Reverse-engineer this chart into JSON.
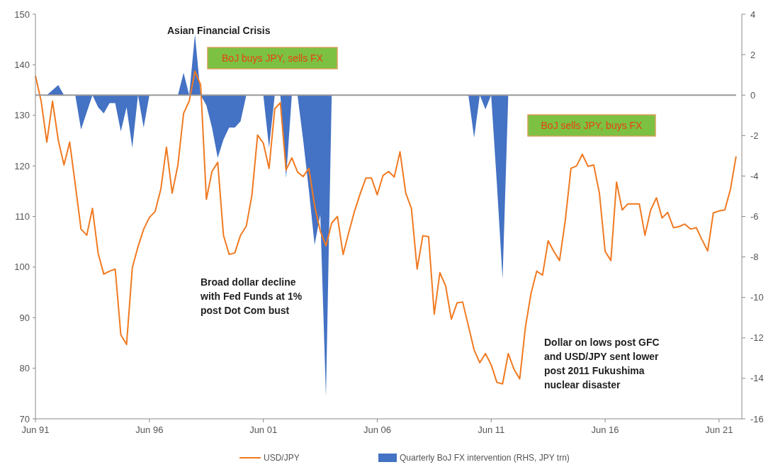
{
  "chart_data": {
    "type": "line",
    "series": [
      {
        "name": "USD/JPY",
        "color": "#f07a22",
        "x": [
          "1991-06",
          "1991-09",
          "1991-12",
          "1992-03",
          "1992-06",
          "1992-09",
          "1992-12",
          "1993-03",
          "1993-06",
          "1993-09",
          "1993-12",
          "1994-03",
          "1994-06",
          "1994-09",
          "1994-12",
          "1995-03",
          "1995-06",
          "1995-09",
          "1995-12",
          "1996-03",
          "1996-06",
          "1996-09",
          "1996-12",
          "1997-03",
          "1997-06",
          "1997-09",
          "1997-12",
          "1998-03",
          "1998-06",
          "1998-09",
          "1998-12",
          "1999-03",
          "1999-06",
          "1999-09",
          "1999-12",
          "2000-03",
          "2000-06",
          "2000-09",
          "2000-12",
          "2001-03",
          "2001-06",
          "2001-09",
          "2001-12",
          "2002-03",
          "2002-06",
          "2002-09",
          "2002-12",
          "2003-03",
          "2003-06",
          "2003-09",
          "2003-12",
          "2004-03",
          "2004-06",
          "2004-09",
          "2004-12",
          "2005-03",
          "2005-06",
          "2005-09",
          "2005-12",
          "2006-03",
          "2006-06",
          "2006-09",
          "2006-12",
          "2007-03",
          "2007-06",
          "2007-09",
          "2007-12",
          "2008-03",
          "2008-06",
          "2008-09",
          "2008-12",
          "2009-03",
          "2009-06",
          "2009-09",
          "2009-12",
          "2010-03",
          "2010-06",
          "2010-09",
          "2010-12",
          "2011-03",
          "2011-06",
          "2011-09",
          "2011-12",
          "2012-03",
          "2012-06",
          "2012-09",
          "2012-12",
          "2013-03",
          "2013-06",
          "2013-09",
          "2013-12",
          "2014-03",
          "2014-06",
          "2014-09",
          "2014-12",
          "2015-03",
          "2015-06",
          "2015-09",
          "2015-12",
          "2016-03",
          "2016-06",
          "2016-09",
          "2016-12",
          "2017-03",
          "2017-06",
          "2017-09",
          "2017-12",
          "2018-03",
          "2018-06",
          "2018-09",
          "2018-12",
          "2019-03",
          "2019-06",
          "2019-09",
          "2019-12",
          "2020-03",
          "2020-06",
          "2020-09",
          "2020-12",
          "2021-03",
          "2021-06",
          "2021-09",
          "2021-12",
          "2022-03"
        ],
        "values": [
          137.8,
          132.8,
          124.7,
          132.8,
          125.1,
          120.2,
          124.7,
          116.3,
          107.5,
          106.3,
          111.6,
          102.8,
          98.6,
          99.2,
          99.6,
          86.6,
          84.7,
          99.9,
          104.0,
          107.5,
          109.8,
          111.0,
          115.4,
          123.7,
          114.6,
          120.2,
          130.4,
          132.8,
          138.7,
          136.0,
          113.4,
          118.9,
          120.7,
          106.3,
          102.5,
          102.8,
          106.3,
          108.1,
          114.3,
          126.1,
          124.5,
          119.5,
          131.3,
          132.5,
          119.2,
          121.6,
          118.8,
          117.9,
          119.5,
          112.2,
          107.1,
          104.2,
          108.7,
          110.0,
          102.5,
          106.8,
          111.0,
          114.5,
          117.6,
          117.6,
          114.3,
          118.1,
          118.9,
          117.8,
          122.8,
          114.6,
          111.6,
          99.6,
          106.2,
          106.0,
          90.7,
          98.9,
          96.3,
          89.7,
          92.9,
          93.1,
          88.4,
          83.6,
          81.1,
          82.9,
          80.7,
          77.2,
          76.9,
          82.9,
          79.8,
          77.9,
          88.1,
          94.8,
          99.2,
          98.4,
          105.2,
          103.1,
          101.3,
          109.2,
          119.5,
          120.0,
          122.3,
          119.9,
          120.2,
          114.6,
          103.1,
          101.3,
          116.8,
          111.3,
          112.5,
          112.5,
          112.5,
          106.3,
          111.3,
          113.7,
          109.7,
          110.8,
          107.8,
          108.0,
          108.5,
          107.5,
          107.8,
          105.4,
          103.2,
          110.7,
          111.1,
          111.3,
          115.4,
          121.9
        ]
      },
      {
        "name": "Quarterly BoJ FX intervention (RHS, JPY trn)",
        "color": "#4472c4",
        "type": "area",
        "axis": "y2",
        "x": [
          "1991-06",
          "1991-12",
          "1992-06",
          "1992-09",
          "1993-03",
          "1993-06",
          "1993-12",
          "1994-03",
          "1994-06",
          "1994-09",
          "1994-12",
          "1995-03",
          "1995-06",
          "1995-09",
          "1995-12",
          "1996-03",
          "1996-06",
          "1997-09",
          "1997-12",
          "1998-03",
          "1998-06",
          "1998-09",
          "1998-12",
          "1999-03",
          "1999-06",
          "1999-09",
          "1999-12",
          "2000-03",
          "2000-06",
          "2000-09",
          "2001-06",
          "2001-09",
          "2001-12",
          "2002-03",
          "2002-06",
          "2002-09",
          "2002-12",
          "2003-03",
          "2003-06",
          "2003-09",
          "2003-12",
          "2004-03",
          "2004-06",
          "2010-06",
          "2010-09",
          "2010-12",
          "2011-03",
          "2011-06",
          "2011-09",
          "2011-12",
          "2012-03",
          "2022-03"
        ],
        "values": [
          0,
          0,
          0.5,
          0,
          0,
          -1.7,
          0,
          -0.6,
          -0.9,
          -0.4,
          -0.4,
          -1.8,
          -0.6,
          -2.6,
          0,
          -1.6,
          0,
          0,
          1.1,
          0,
          3.0,
          0,
          -0.5,
          -1.6,
          -3.1,
          -2.2,
          -1.6,
          -1.6,
          -1.3,
          0,
          0,
          -2.6,
          0,
          0,
          -4.1,
          0,
          0,
          -2.2,
          -4.7,
          -7.4,
          -5.9,
          -14.9,
          0,
          0,
          -2.1,
          0,
          -0.7,
          0,
          -4.4,
          -9.1,
          0,
          0
        ]
      }
    ],
    "xlim": [
      "1991-06",
      "2022-06"
    ],
    "xticks": [
      {
        "value": "1991-06",
        "label": "Jun 91"
      },
      {
        "value": "1996-06",
        "label": "Jun 96"
      },
      {
        "value": "2001-06",
        "label": "Jun 01"
      },
      {
        "value": "2006-06",
        "label": "Jun 06"
      },
      {
        "value": "2011-06",
        "label": "Jun 11"
      },
      {
        "value": "2016-06",
        "label": "Jun 16"
      },
      {
        "value": "2021-06",
        "label": "Jun 21"
      }
    ],
    "ylim": [
      70,
      150
    ],
    "yticks": [
      70,
      80,
      90,
      100,
      110,
      120,
      130,
      140,
      150
    ],
    "y2lim": [
      -16,
      4
    ],
    "y2ticks": [
      -16,
      -14,
      -12,
      -10,
      -8,
      -6,
      -4,
      -2,
      0,
      2,
      4
    ],
    "ref_lines": [
      {
        "axis": "y2",
        "value": 0,
        "color": "#999999"
      }
    ],
    "annotations": [
      "Asian Financial Crisis",
      "BoJ buys JPY, sells FX",
      "BoJ sells JPY, buys FX",
      "Broad dollar decline\nwith Fed Funds at 1%\npost Dot Com bust",
      "Dollar on lows post GFC\nand USD/JPY sent lower\npost 2011 Fukushima\nnuclear disaster"
    ],
    "legend": "bottom",
    "grid": false
  }
}
